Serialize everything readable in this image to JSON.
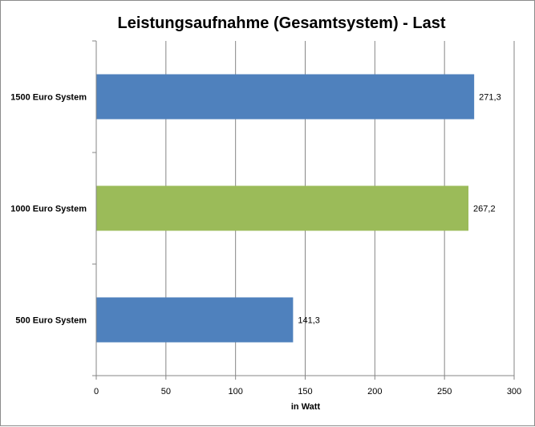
{
  "chart_data": {
    "type": "bar",
    "orientation": "horizontal",
    "title": "Leistungsaufnahme (Gesamtsystem) - Last",
    "xlabel": "in Watt",
    "ylabel": "",
    "categories": [
      "1500 Euro System",
      "1000 Euro System",
      "500 Euro System"
    ],
    "values": [
      271.3,
      267.2,
      141.3
    ],
    "data_labels": [
      "271,3",
      "267,2",
      "141,3"
    ],
    "bar_colors": [
      "#4f81bd",
      "#9bbb59",
      "#4f81bd"
    ],
    "xlim": [
      0,
      300
    ],
    "xticks": [
      0,
      50,
      100,
      150,
      200,
      250,
      300
    ],
    "xtick_labels": [
      "0",
      "50",
      "100",
      "150",
      "200",
      "250",
      "300"
    ],
    "grid": "vertical",
    "legend": "none"
  }
}
